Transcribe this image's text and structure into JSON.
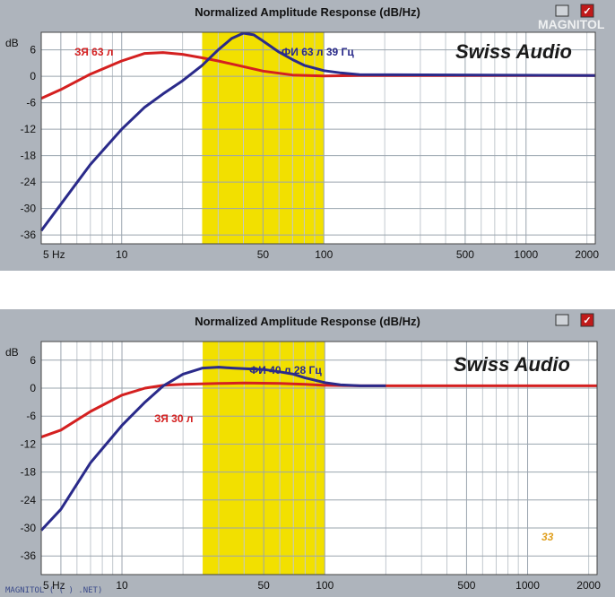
{
  "chart_data": [
    {
      "type": "line",
      "title": "Normalized Amplitude Response (dB/Hz)",
      "xscale": "log",
      "xlim": [
        4,
        2200
      ],
      "ylim": [
        -38,
        10
      ],
      "x_ticks": [
        {
          "value": 5,
          "label": "5 Hz"
        },
        {
          "value": 10,
          "label": "10"
        },
        {
          "value": 50,
          "label": "50"
        },
        {
          "value": 100,
          "label": "100"
        },
        {
          "value": 500,
          "label": "500"
        },
        {
          "value": 1000,
          "label": "1000"
        },
        {
          "value": 2000,
          "label": "2000"
        }
      ],
      "y_ticks": [
        {
          "value": 6,
          "label": "6"
        },
        {
          "value": 0,
          "label": "0"
        },
        {
          "value": -6,
          "label": "-6"
        },
        {
          "value": -12,
          "label": "-12"
        },
        {
          "value": -18,
          "label": "-18"
        },
        {
          "value": -24,
          "label": "-24"
        },
        {
          "value": -30,
          "label": "-30"
        },
        {
          "value": -36,
          "label": "-36"
        }
      ],
      "y_unit_label": "dB",
      "highlight_band": {
        "from": 25,
        "to": 100,
        "color": "#f2e000"
      },
      "grid": true,
      "brand": "Swiss Audio",
      "watermark": "MAGNITOL",
      "series": [
        {
          "name": "ЗЯ 63 л",
          "color": "#d42020",
          "x": [
            4,
            5,
            7,
            10,
            13,
            16,
            20,
            25,
            30,
            40,
            50,
            70,
            100,
            150,
            200,
            2200
          ],
          "y": [
            -5,
            -3,
            0.5,
            3.5,
            5.2,
            5.4,
            5,
            4.2,
            3.5,
            2.2,
            1.2,
            0.3,
            0.1,
            0.2,
            0.2,
            0.2
          ]
        },
        {
          "name": "ФИ 63 л 39 Гц",
          "color": "#2a2a8a",
          "x": [
            4,
            5,
            7,
            10,
            13,
            16,
            20,
            25,
            30,
            35,
            40,
            45,
            50,
            60,
            70,
            80,
            100,
            120,
            150,
            2200
          ],
          "y": [
            -35,
            -29,
            -20,
            -12,
            -7,
            -4,
            -1,
            2.5,
            6,
            8.6,
            9.8,
            9.4,
            8,
            5.5,
            3.8,
            2.5,
            1.3,
            0.8,
            0.4,
            0.2
          ]
        }
      ],
      "annotations": [
        {
          "text": "ЗЯ 63 л",
          "color": "#d42020"
        },
        {
          "text": "ФИ 63 л 39 Гц",
          "color": "#2a2a8a"
        }
      ]
    },
    {
      "type": "line",
      "title": "Normalized Amplitude Response (dB/Hz)",
      "xscale": "log",
      "xlim": [
        4,
        2200
      ],
      "ylim": [
        -40,
        10
      ],
      "x_ticks": [
        {
          "value": 5,
          "label": "5 Hz"
        },
        {
          "value": 10,
          "label": "10"
        },
        {
          "value": 50,
          "label": "50"
        },
        {
          "value": 100,
          "label": "100"
        },
        {
          "value": 500,
          "label": "500"
        },
        {
          "value": 1000,
          "label": "1000"
        },
        {
          "value": 2000,
          "label": "2000"
        }
      ],
      "y_ticks": [
        {
          "value": 6,
          "label": "6"
        },
        {
          "value": 0,
          "label": "0"
        },
        {
          "value": -6,
          "label": "-6"
        },
        {
          "value": -12,
          "label": "-12"
        },
        {
          "value": -18,
          "label": "-18"
        },
        {
          "value": -24,
          "label": "-24"
        },
        {
          "value": -30,
          "label": "-30"
        },
        {
          "value": -36,
          "label": "-36"
        }
      ],
      "y_unit_label": "dB",
      "highlight_band": {
        "from": 25,
        "to": 100,
        "color": "#f2e000"
      },
      "grid": true,
      "brand": "Swiss Audio",
      "footer_text": "MAGNITOL ( ( ) .NET)",
      "badge": "33",
      "series": [
        {
          "name": "ЗЯ 30 л",
          "color": "#d42020",
          "x": [
            4,
            5,
            7,
            10,
            13,
            16,
            20,
            30,
            40,
            60,
            80,
            100,
            150,
            2200
          ],
          "y": [
            -10.5,
            -9,
            -5,
            -1.5,
            0,
            0.6,
            0.8,
            1,
            1.1,
            1,
            0.8,
            0.6,
            0.5,
            0.5
          ]
        },
        {
          "name": "ФИ 40 л 28 Гц",
          "color": "#2a2a8a",
          "x": [
            4,
            5,
            7,
            10,
            13,
            16,
            20,
            25,
            30,
            35,
            40,
            50,
            60,
            70,
            80,
            100,
            120,
            150,
            200
          ],
          "y": [
            -30.5,
            -26,
            -16,
            -8,
            -3,
            0.5,
            3,
            4.3,
            4.5,
            4.3,
            4.2,
            4,
            3.5,
            3,
            2.2,
            1.2,
            0.7,
            0.5,
            0.5
          ]
        }
      ],
      "annotations": [
        {
          "text": "ФИ 40 л 28 Гц",
          "color": "#2a2a8a"
        },
        {
          "text": "ЗЯ 30 л",
          "color": "#d42020"
        }
      ]
    }
  ]
}
